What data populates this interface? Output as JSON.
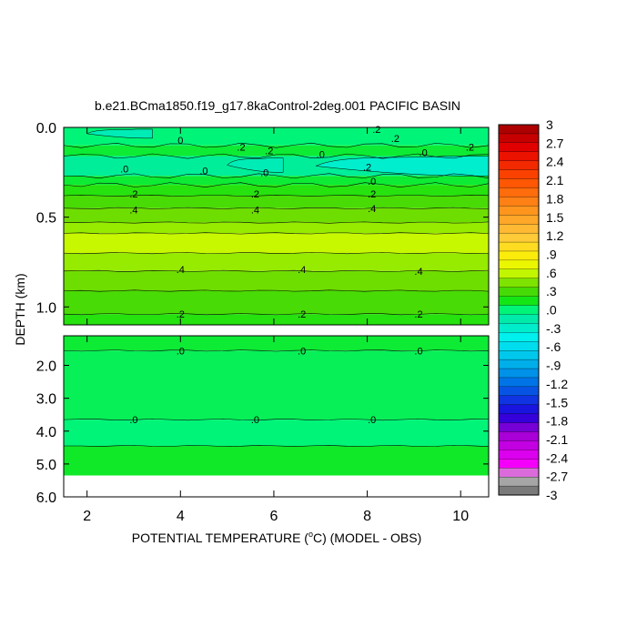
{
  "chart_data": {
    "type": "heatmap",
    "title": "b.e21.BCma1850.f19_g17.8kaControl-2deg.001 PACIFIC BASIN",
    "xlabel_pre": "POTENTIAL TEMPERATURE (",
    "xlabel_deg": "o",
    "xlabel_post": "C) (MODEL - OBS)",
    "ylabel": "DEPTH (km)",
    "x_range": [
      1.5,
      10.6
    ],
    "x_ticks": [
      2,
      4,
      6,
      8,
      10
    ],
    "upper_panel": {
      "depth_range": [
        0.0,
        1.1
      ],
      "y_ticks": [
        {
          "v": 0.0,
          "label": "0.0"
        },
        {
          "v": 0.5,
          "label": "0.5"
        },
        {
          "v": 1.0,
          "label": "1.0"
        }
      ],
      "bands": [
        {
          "d0": 0.0,
          "d1": 0.1,
          "value": 0.0
        },
        {
          "d0": 0.1,
          "d1": 0.16,
          "value": 0.1
        },
        {
          "d0": 0.16,
          "d1": 0.27,
          "value": -0.1
        },
        {
          "d0": 0.27,
          "d1": 0.32,
          "value": 0.1
        },
        {
          "d0": 0.32,
          "d1": 0.38,
          "value": 0.2
        },
        {
          "d0": 0.38,
          "d1": 0.45,
          "value": 0.3
        },
        {
          "d0": 0.45,
          "d1": 0.53,
          "value": 0.4
        },
        {
          "d0": 0.53,
          "d1": 0.59,
          "value": 0.5
        },
        {
          "d0": 0.59,
          "d1": 0.7,
          "value": 0.6
        },
        {
          "d0": 0.7,
          "d1": 0.8,
          "value": 0.5
        },
        {
          "d0": 0.8,
          "d1": 0.91,
          "value": 0.4
        },
        {
          "d0": 0.91,
          "d1": 1.04,
          "value": 0.3
        },
        {
          "d0": 1.04,
          "d1": 1.1,
          "value": 0.2
        }
      ],
      "contour_depths": [
        0.1,
        0.16,
        0.27,
        0.32,
        0.38,
        0.45,
        0.53,
        0.59,
        0.7,
        0.8,
        0.91,
        1.04
      ],
      "cyan_patches": [
        {
          "x0": 6.9,
          "x1": 10.6,
          "d0": 0.16,
          "d1": 0.27,
          "value": -0.3
        },
        {
          "x0": 2.0,
          "x1": 3.4,
          "d0": 0.01,
          "d1": 0.06,
          "value": -0.2
        },
        {
          "x0": 5.0,
          "x1": 6.2,
          "d0": 0.17,
          "d1": 0.25,
          "value": -0.2
        }
      ],
      "labels": [
        {
          "x": 4.0,
          "d": 0.07,
          "text": "0"
        },
        {
          "x": 5.3,
          "d": 0.11,
          "text": ".2"
        },
        {
          "x": 5.9,
          "d": 0.13,
          "text": ".2"
        },
        {
          "x": 7.0,
          "d": 0.15,
          "text": ".0"
        },
        {
          "x": 8.2,
          "d": 0.01,
          "text": ".2"
        },
        {
          "x": 8.6,
          "d": 0.06,
          "text": ".2"
        },
        {
          "x": 9.2,
          "d": 0.14,
          "text": ".0"
        },
        {
          "x": 10.2,
          "d": 0.11,
          "text": ".2"
        },
        {
          "x": 2.8,
          "d": 0.23,
          "text": ".0"
        },
        {
          "x": 4.5,
          "d": 0.24,
          "text": ".0"
        },
        {
          "x": 5.8,
          "d": 0.25,
          "text": ".0"
        },
        {
          "x": 8.0,
          "d": 0.22,
          "text": ".2"
        },
        {
          "x": 8.1,
          "d": 0.3,
          "text": ".0"
        },
        {
          "x": 8.1,
          "d": 0.37,
          "text": ".2"
        },
        {
          "x": 3.0,
          "d": 0.37,
          "text": ".2"
        },
        {
          "x": 5.6,
          "d": 0.37,
          "text": ".2"
        },
        {
          "x": 3.0,
          "d": 0.46,
          "text": ".4"
        },
        {
          "x": 5.6,
          "d": 0.46,
          "text": ".4"
        },
        {
          "x": 8.1,
          "d": 0.45,
          "text": ".4"
        },
        {
          "x": 4.0,
          "d": 0.79,
          "text": ".4"
        },
        {
          "x": 6.6,
          "d": 0.79,
          "text": ".4"
        },
        {
          "x": 9.1,
          "d": 0.8,
          "text": ".4"
        },
        {
          "x": 4.0,
          "d": 1.04,
          "text": ".2"
        },
        {
          "x": 6.6,
          "d": 1.04,
          "text": ".2"
        },
        {
          "x": 9.1,
          "d": 1.04,
          "text": ".2"
        }
      ]
    },
    "lower_panel": {
      "depth_range": [
        1.1,
        6.0
      ],
      "y_ticks": [
        {
          "v": 2.0,
          "label": "2.0"
        },
        {
          "v": 3.0,
          "label": "3.0"
        },
        {
          "v": 4.0,
          "label": "4.0"
        },
        {
          "v": 5.0,
          "label": "5.0"
        },
        {
          "v": 6.0,
          "label": "6.0"
        }
      ],
      "data_bottom": 5.35,
      "bands": [
        {
          "d0": 1.1,
          "d1": 1.55,
          "value": 0.1
        },
        {
          "d0": 1.55,
          "d1": 3.65,
          "value": 0.05
        },
        {
          "d0": 3.65,
          "d1": 4.45,
          "value": 0.0
        },
        {
          "d0": 4.45,
          "d1": 5.35,
          "value": 0.12
        }
      ],
      "contour_depths": [
        1.55,
        3.65,
        4.45
      ],
      "labels": [
        {
          "x": 4.0,
          "d": 1.55,
          "text": ".0"
        },
        {
          "x": 6.6,
          "d": 1.55,
          "text": ".0"
        },
        {
          "x": 9.1,
          "d": 1.55,
          "text": ".0"
        },
        {
          "x": 3.0,
          "d": 3.65,
          "text": ".0"
        },
        {
          "x": 5.6,
          "d": 3.65,
          "text": ".0"
        },
        {
          "x": 8.1,
          "d": 3.65,
          "text": ".0"
        }
      ]
    },
    "colorbar": {
      "min": -3,
      "max": 3,
      "levels": 41,
      "tick_labels": [
        "3",
        "2.7",
        "2.4",
        "2.1",
        "1.8",
        "1.5",
        "1.2",
        ".9",
        ".6",
        ".3",
        ".0",
        "-.3",
        "-.6",
        "-.9",
        "-1.2",
        "-1.5",
        "-1.8",
        "-2.1",
        "-2.4",
        "-2.7",
        "-3"
      ]
    }
  }
}
